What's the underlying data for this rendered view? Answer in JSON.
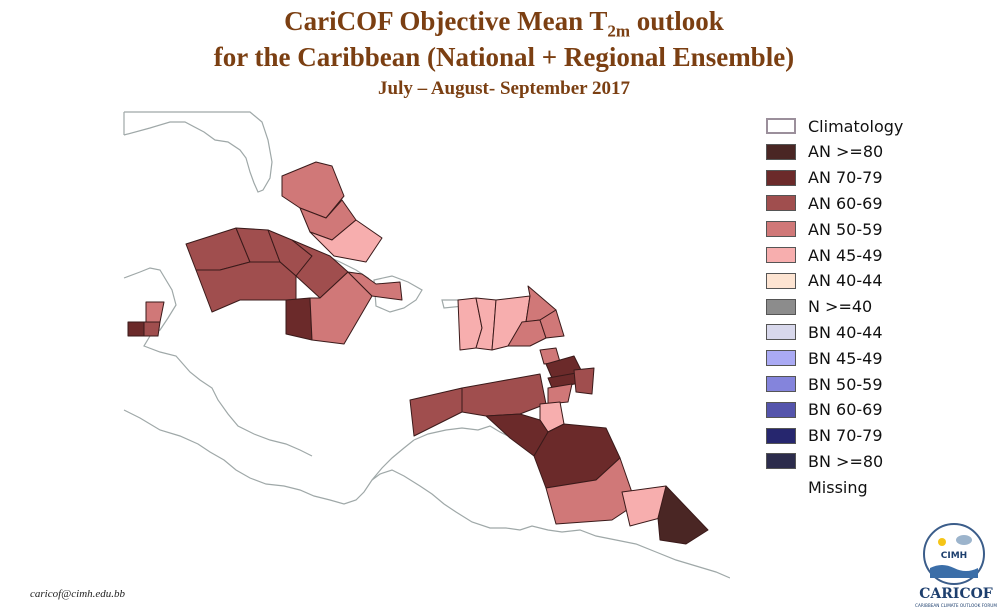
{
  "title": {
    "line1_prefix": "CariCOF Objective Mean T",
    "line1_sub": "2m",
    "line1_suffix": " outlook",
    "line2": "for the Caribbean (National + Regional Ensemble)",
    "line3": "July – August- September 2017"
  },
  "colors": {
    "land_outline": "#9fa8a8",
    "AN>=80": "#4a2624",
    "AN70-79": "#6b2a2a",
    "AN60-69": "#a04e4e",
    "AN50-59": "#d07878",
    "AN45-49": "#f7aeae",
    "AN40-44": "#fde4d2"
  },
  "legend": [
    {
      "label": "Climatology",
      "color": "#ffffff",
      "border": "#9b8f9b"
    },
    {
      "label": "AN  >=80",
      "color": "#4a2624"
    },
    {
      "label": "AN 70-79",
      "color": "#6b2a2a"
    },
    {
      "label": "AN 60-69",
      "color": "#a04e4e"
    },
    {
      "label": "AN 50-59",
      "color": "#d07878"
    },
    {
      "label": "AN 45-49",
      "color": "#f7aeae"
    },
    {
      "label": "AN 40-44",
      "color": "#fde4d2"
    },
    {
      "label": "N >=40",
      "color": "#8c8c8c"
    },
    {
      "label": "BN 40-44",
      "color": "#d8d8ec"
    },
    {
      "label": "BN 45-49",
      "color": "#aaaaf4"
    },
    {
      "label": "BN 50-59",
      "color": "#8484dc"
    },
    {
      "label": "BN 60-69",
      "color": "#5454ac"
    },
    {
      "label": "BN 70-79",
      "color": "#26266e"
    },
    {
      "label": "BN  >=80",
      "color": "#2c2c4c"
    },
    {
      "label": "Missing",
      "color": ""
    }
  ],
  "footer": {
    "email": "caricof@cimh.edu.bb"
  },
  "logo": {
    "badge": "CIMH",
    "brand": "CARICOF",
    "tagline": "CARIBBEAN CLIMATE OUTLOOK FORUM"
  }
}
